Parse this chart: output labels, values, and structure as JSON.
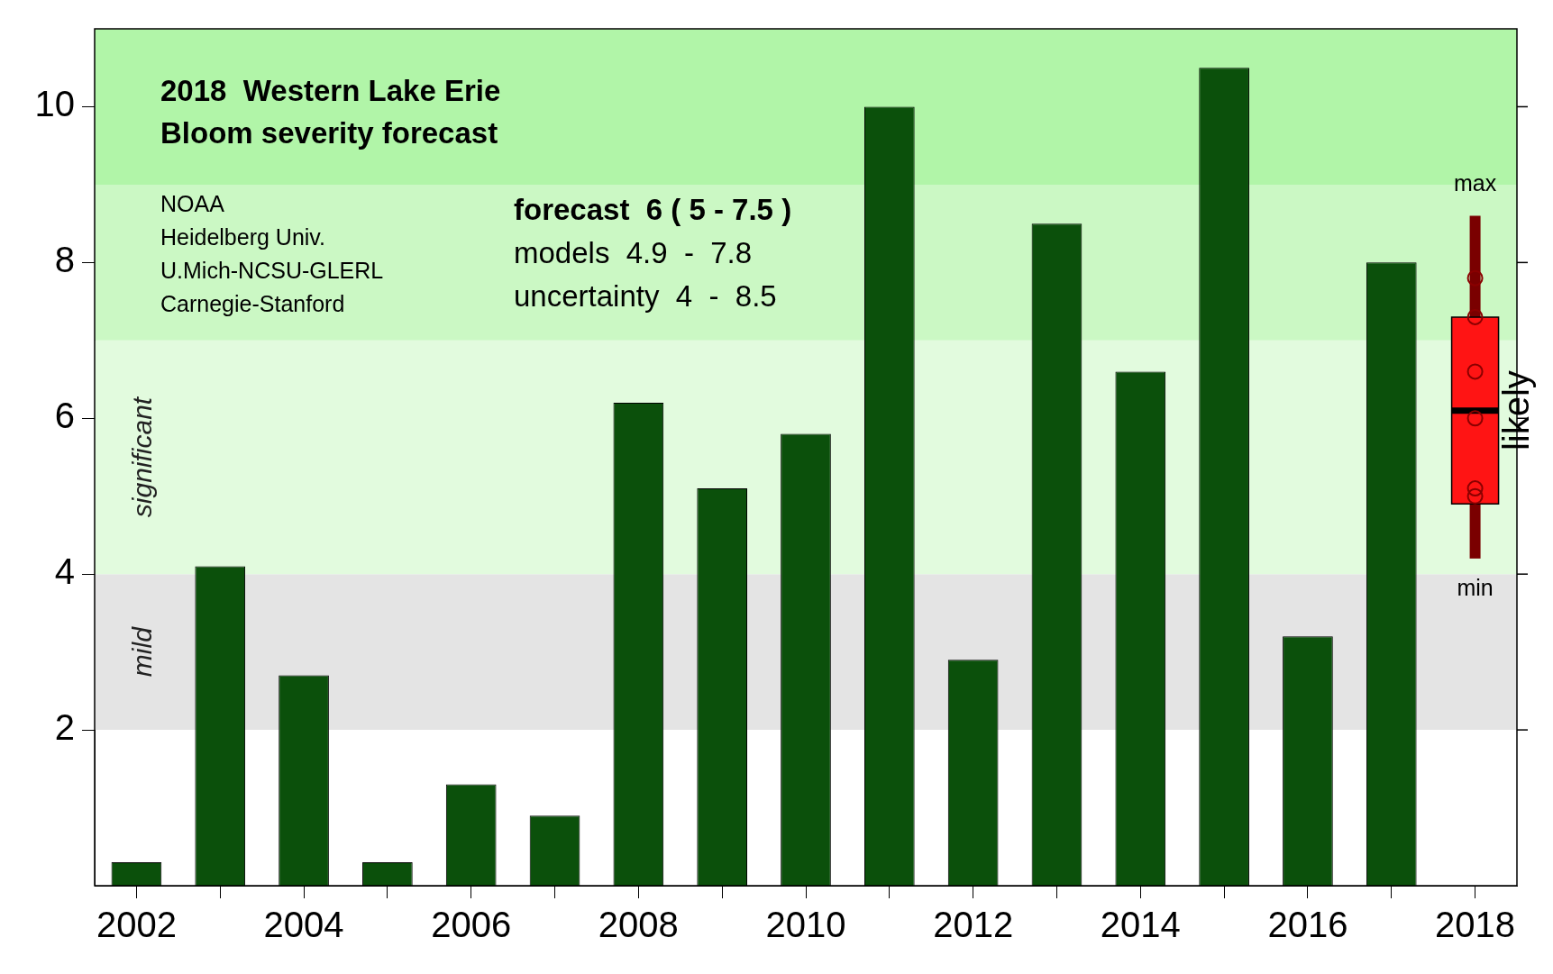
{
  "chart_data": {
    "type": "bar",
    "title": "2018  Western Lake Erie",
    "subtitle": "Bloom severity forecast",
    "categories": [
      "2002",
      null,
      "2004",
      null,
      "2006",
      null,
      "2008",
      null,
      "2010",
      null,
      "2012",
      null,
      "2014",
      null,
      "2016",
      null,
      "2018"
    ],
    "series": [
      {
        "color": "#0b500b",
        "values": [
          0.3,
          4.1,
          2.7,
          0.3,
          1.3,
          0.9,
          6.2,
          5.1,
          5.8,
          10.0,
          2.9,
          8.5,
          6.6,
          10.5,
          3.2,
          8.0,
          null
        ]
      },
      {
        "type": "box",
        "color": "#ff1414",
        "boxes": [
          null,
          null,
          null,
          null,
          null,
          null,
          null,
          null,
          null,
          null,
          null,
          null,
          null,
          null,
          null,
          null,
          {
            "low": 4.2,
            "q1": 4.9,
            "median": 6.1,
            "q3": 7.3,
            "high": 8.6,
            "outliers": [
              7.8,
              7.3,
              6.6,
              6.0,
              5.1,
              5.0
            ]
          }
        ]
      }
    ],
    "ylim": [
      0,
      11
    ],
    "yticks": [
      2,
      4,
      6,
      8,
      10
    ],
    "legend": false,
    "bands": [
      {
        "axis": "y",
        "from": 2,
        "to": 4,
        "label": "mild",
        "color": "#e4e4e4"
      },
      {
        "axis": "y",
        "from": 4,
        "to": 7,
        "label": "significant",
        "color": "#e2fbde"
      },
      {
        "axis": "y",
        "from": 7,
        "to": 9,
        "color": "#cbf8c4"
      },
      {
        "axis": "y",
        "from": 9,
        "to": 11,
        "color": "#b1f5a8"
      }
    ],
    "annotations": [
      "NOAA",
      "Heidelberg Univ.",
      "U.Mich-NCSU-GLERL",
      "Carnegie-Stanford",
      "forecast  6 ( 5 - 7.5 )",
      "models  4.9  -  7.8",
      "uncertainty  4  -  8.5",
      "max",
      "min",
      "likely"
    ]
  }
}
